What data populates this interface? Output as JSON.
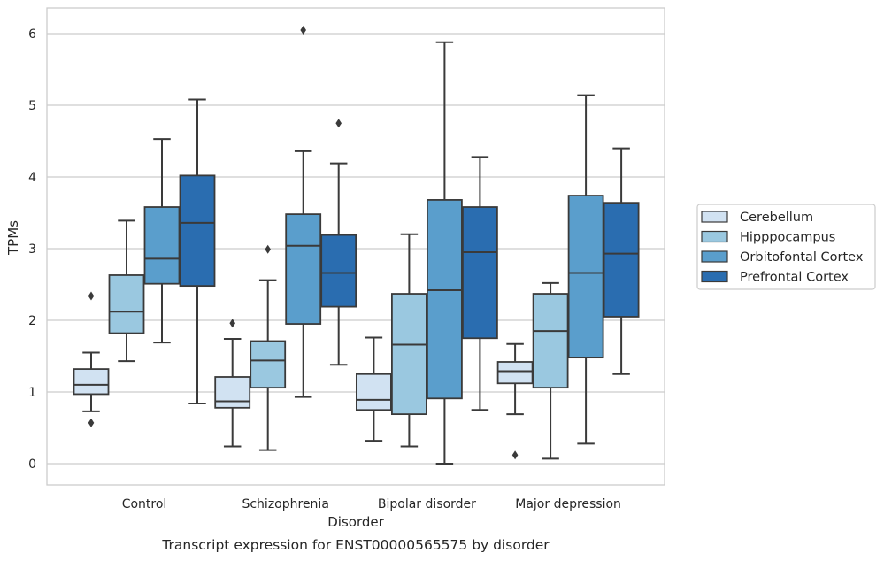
{
  "chart_data": {
    "type": "boxplot",
    "caption": "Transcript expression for ENST00000565575 by disorder",
    "xlabel": "Disorder",
    "ylabel": "TPMs",
    "ylim": [
      -0.3,
      6.35
    ],
    "yticks": [
      "0",
      "1",
      "2",
      "3",
      "4",
      "5",
      "6"
    ],
    "grid": "horizontal",
    "legend_position": "right",
    "categories": [
      "Control",
      "Schizophrenia",
      "Bipolar disorder",
      "Major depression"
    ],
    "series": [
      {
        "name": "Cerebellum",
        "color": "#d1e2f2",
        "boxes": [
          {
            "whislo": 0.73,
            "q1": 0.97,
            "med": 1.1,
            "q3": 1.32,
            "whishi": 1.55,
            "fliers": [
              2.34,
              0.57
            ]
          },
          {
            "whislo": 0.24,
            "q1": 0.78,
            "med": 0.87,
            "q3": 1.21,
            "whishi": 1.74,
            "fliers": [
              1.96
            ]
          },
          {
            "whislo": 0.32,
            "q1": 0.75,
            "med": 0.89,
            "q3": 1.25,
            "whishi": 1.76,
            "fliers": []
          },
          {
            "whislo": 0.69,
            "q1": 1.12,
            "med": 1.29,
            "q3": 1.42,
            "whishi": 1.67,
            "fliers": [
              0.12
            ]
          }
        ]
      },
      {
        "name": "Hipppocampus",
        "color": "#9ac8e0",
        "boxes": [
          {
            "whislo": 1.43,
            "q1": 1.82,
            "med": 2.12,
            "q3": 2.63,
            "whishi": 3.39,
            "fliers": []
          },
          {
            "whislo": 0.19,
            "q1": 1.06,
            "med": 1.44,
            "q3": 1.71,
            "whishi": 2.56,
            "fliers": [
              2.99
            ]
          },
          {
            "whislo": 0.24,
            "q1": 0.69,
            "med": 1.66,
            "q3": 2.37,
            "whishi": 3.2,
            "fliers": []
          },
          {
            "whislo": 0.07,
            "q1": 1.06,
            "med": 1.85,
            "q3": 2.37,
            "whishi": 2.52,
            "fliers": []
          }
        ]
      },
      {
        "name": "Orbitofontal Cortex",
        "color": "#5a9ecc",
        "boxes": [
          {
            "whislo": 1.69,
            "q1": 2.51,
            "med": 2.86,
            "q3": 3.58,
            "whishi": 4.53,
            "fliers": []
          },
          {
            "whislo": 0.93,
            "q1": 1.95,
            "med": 3.04,
            "q3": 3.48,
            "whishi": 4.36,
            "fliers": [
              6.05
            ]
          },
          {
            "whislo": 0.0,
            "q1": 0.91,
            "med": 2.42,
            "q3": 3.68,
            "whishi": 5.88,
            "fliers": []
          },
          {
            "whislo": 0.28,
            "q1": 1.48,
            "med": 2.66,
            "q3": 3.74,
            "whishi": 5.14,
            "fliers": []
          }
        ]
      },
      {
        "name": "Prefrontal Cortex",
        "color": "#2a6db0",
        "boxes": [
          {
            "whislo": 0.84,
            "q1": 2.48,
            "med": 3.36,
            "q3": 4.02,
            "whishi": 5.08,
            "fliers": []
          },
          {
            "whislo": 1.38,
            "q1": 2.19,
            "med": 2.66,
            "q3": 3.19,
            "whishi": 4.19,
            "fliers": [
              4.75
            ]
          },
          {
            "whislo": 0.75,
            "q1": 1.75,
            "med": 2.95,
            "q3": 3.58,
            "whishi": 4.28,
            "fliers": []
          },
          {
            "whislo": 1.25,
            "q1": 2.05,
            "med": 2.93,
            "q3": 3.64,
            "whishi": 4.4,
            "fliers": []
          }
        ]
      }
    ]
  }
}
